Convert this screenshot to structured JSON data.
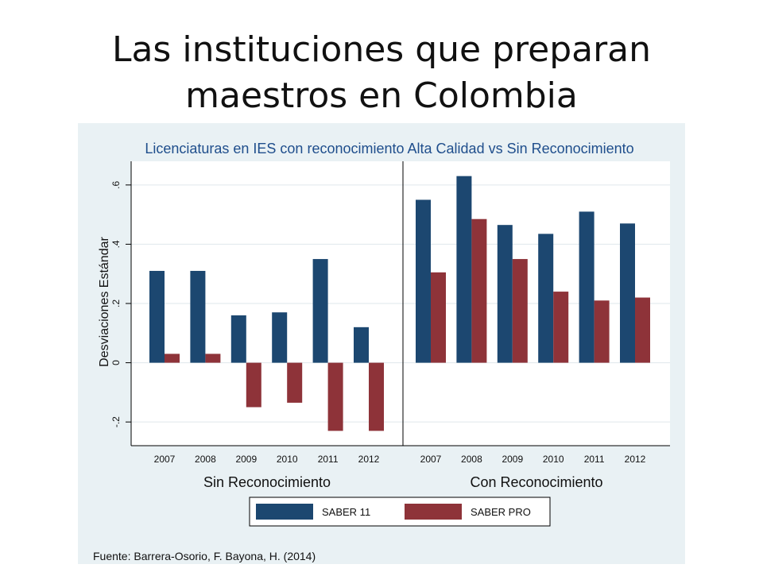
{
  "slide": {
    "title_line1": "Las instituciones que preparan",
    "title_line2": "maestros en Colombia"
  },
  "colors": {
    "plot_region": "#e9f1f4",
    "plot_area": "#ffffff",
    "grid": "#dfe7eb",
    "saber11": "#1c4770",
    "saberpro": "#8e3339",
    "title": "#1f4e8c"
  },
  "chart_data": {
    "type": "bar",
    "title": "Licenciaturas en IES con reconocimiento Alta Calidad vs Sin Reconocimiento",
    "ylabel": "Desviaciones Estándar",
    "ylim": [
      -0.28,
      0.68
    ],
    "yticks": [
      -0.2,
      0,
      0.2,
      0.4,
      0.6
    ],
    "ytick_labels": [
      "-.2",
      "0",
      ".2",
      ".4",
      ".6"
    ],
    "grid": true,
    "legend_position": "bottom",
    "categories": [
      "2007",
      "2008",
      "2009",
      "2010",
      "2011",
      "2012"
    ],
    "panels": [
      {
        "name": "Sin Reconocimiento",
        "series": [
          {
            "name": "SABER 11",
            "values": [
              0.31,
              0.31,
              0.16,
              0.17,
              0.35,
              0.12
            ]
          },
          {
            "name": "SABER PRO",
            "values": [
              0.03,
              0.03,
              -0.15,
              -0.135,
              -0.23,
              -0.23
            ]
          }
        ]
      },
      {
        "name": "Con Reconocimiento",
        "series": [
          {
            "name": "SABER 11",
            "values": [
              0.55,
              0.63,
              0.465,
              0.435,
              0.51,
              0.47
            ]
          },
          {
            "name": "SABER PRO",
            "values": [
              0.305,
              0.485,
              0.35,
              0.24,
              0.21,
              0.22
            ]
          }
        ]
      }
    ],
    "legend": [
      "SABER 11",
      "SABER PRO"
    ],
    "source": "Fuente: Barrera-Osorio, F. Bayona, H.  (2014)"
  }
}
